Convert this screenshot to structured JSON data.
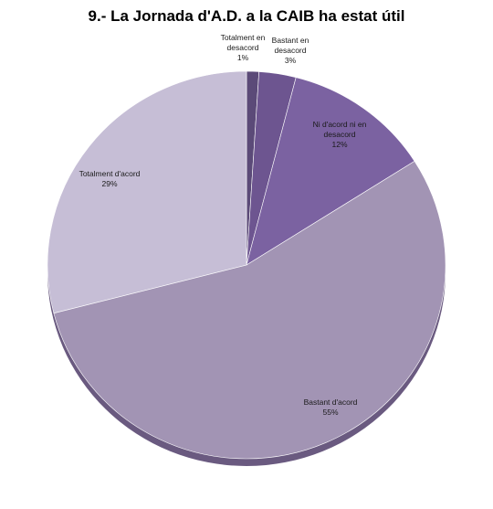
{
  "chart_data": {
    "type": "pie",
    "title": "9.- La Jornada d'A.D. a la CAIB ha estat útil",
    "slices": [
      {
        "label": [
          "Totalment en",
          "desacord"
        ],
        "percent_label": "1%",
        "value": 1,
        "color": "#5b4a78"
      },
      {
        "label": [
          "Bastant en",
          "desacord"
        ],
        "percent_label": "3%",
        "value": 3,
        "color": "#6d5590"
      },
      {
        "label": [
          "Ni d'acord ni en",
          "desacord"
        ],
        "percent_label": "12%",
        "value": 12,
        "color": "#7b62a1"
      },
      {
        "label": [
          "Bastant d'acord"
        ],
        "percent_label": "55%",
        "value": 55,
        "color": "#a294b4"
      },
      {
        "label": [
          "Totalment d'acord"
        ],
        "percent_label": "29%",
        "value": 29,
        "color": "#c6bed6"
      }
    ]
  }
}
